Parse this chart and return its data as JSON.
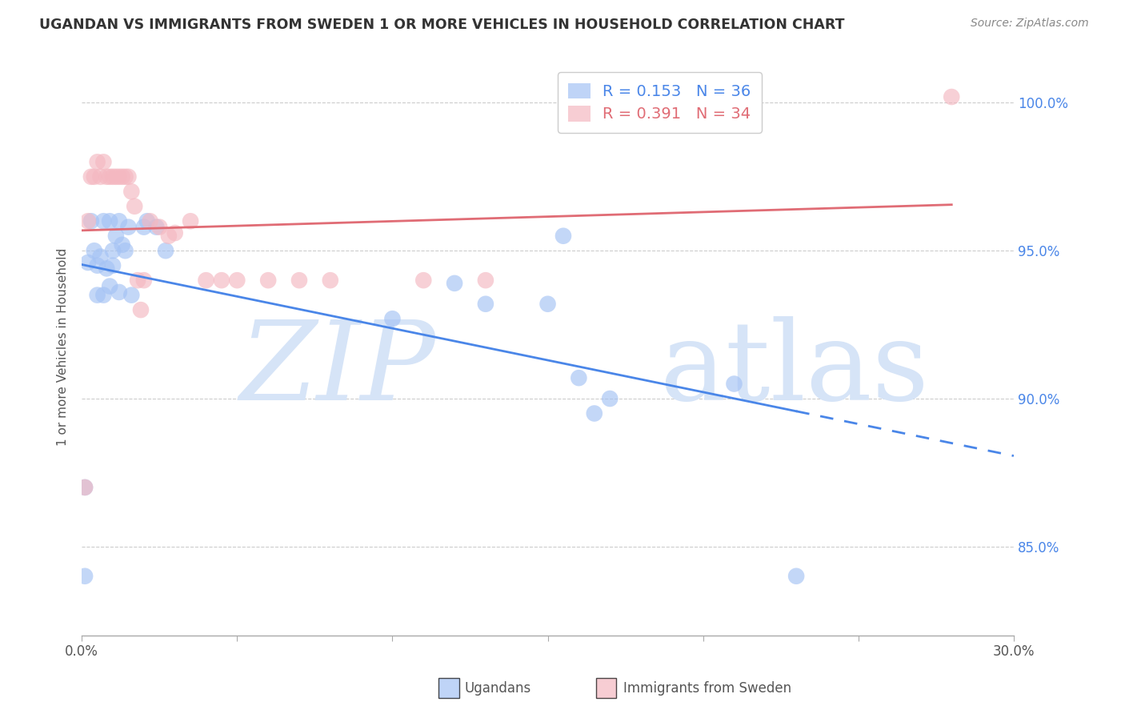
{
  "title": "UGANDAN VS IMMIGRANTS FROM SWEDEN 1 OR MORE VEHICLES IN HOUSEHOLD CORRELATION CHART",
  "source": "Source: ZipAtlas.com",
  "ylabel": "1 or more Vehicles in Household",
  "legend_label1": "Ugandans",
  "legend_label2": "Immigrants from Sweden",
  "R1": 0.153,
  "N1": 36,
  "R2": 0.391,
  "N2": 34,
  "color_blue": "#a4c2f4",
  "color_pink": "#f4b8c1",
  "color_blue_line": "#4a86e8",
  "color_pink_line": "#e06c75",
  "color_blue_text": "#4a86e8",
  "color_pink_text": "#e06c75",
  "xlim": [
    0.0,
    0.3
  ],
  "ylim": [
    0.82,
    1.015
  ],
  "yticks": [
    0.85,
    0.9,
    0.95,
    1.0
  ],
  "ytick_labels": [
    "85.0%",
    "90.0%",
    "95.0%",
    "100.0%"
  ],
  "xticks": [
    0.0,
    0.05,
    0.1,
    0.15,
    0.2,
    0.25,
    0.3
  ],
  "ugandan_x": [
    0.001,
    0.001,
    0.002,
    0.003,
    0.004,
    0.005,
    0.005,
    0.006,
    0.007,
    0.007,
    0.008,
    0.009,
    0.009,
    0.01,
    0.01,
    0.011,
    0.012,
    0.012,
    0.013,
    0.014,
    0.015,
    0.016,
    0.02,
    0.021,
    0.024,
    0.027,
    0.1,
    0.12,
    0.13,
    0.15,
    0.155,
    0.16,
    0.165,
    0.17,
    0.21,
    0.23
  ],
  "ugandan_y": [
    0.84,
    0.87,
    0.946,
    0.96,
    0.95,
    0.935,
    0.945,
    0.948,
    0.935,
    0.96,
    0.944,
    0.938,
    0.96,
    0.945,
    0.95,
    0.955,
    0.936,
    0.96,
    0.952,
    0.95,
    0.958,
    0.935,
    0.958,
    0.96,
    0.958,
    0.95,
    0.927,
    0.939,
    0.932,
    0.932,
    0.955,
    0.907,
    0.895,
    0.9,
    0.905,
    0.84
  ],
  "sweden_x": [
    0.001,
    0.002,
    0.003,
    0.004,
    0.005,
    0.006,
    0.007,
    0.008,
    0.009,
    0.01,
    0.011,
    0.012,
    0.013,
    0.014,
    0.015,
    0.016,
    0.017,
    0.018,
    0.019,
    0.02,
    0.022,
    0.025,
    0.028,
    0.03,
    0.035,
    0.04,
    0.045,
    0.05,
    0.06,
    0.07,
    0.08,
    0.11,
    0.13,
    0.28
  ],
  "sweden_y": [
    0.87,
    0.96,
    0.975,
    0.975,
    0.98,
    0.975,
    0.98,
    0.975,
    0.975,
    0.975,
    0.975,
    0.975,
    0.975,
    0.975,
    0.975,
    0.97,
    0.965,
    0.94,
    0.93,
    0.94,
    0.96,
    0.958,
    0.955,
    0.956,
    0.96,
    0.94,
    0.94,
    0.94,
    0.94,
    0.94,
    0.94,
    0.94,
    0.94,
    1.002
  ],
  "watermark_color": "#d6e4f7",
  "background_color": "#ffffff"
}
